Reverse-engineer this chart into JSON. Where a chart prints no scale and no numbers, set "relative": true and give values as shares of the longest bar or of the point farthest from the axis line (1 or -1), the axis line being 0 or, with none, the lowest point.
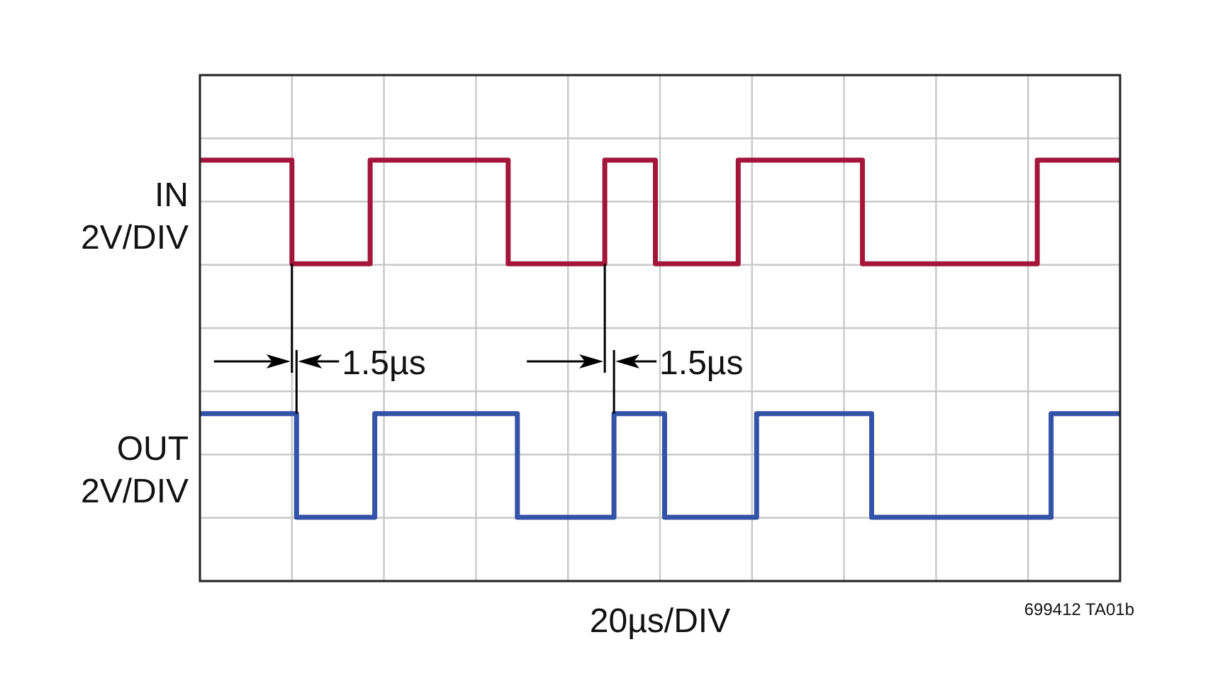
{
  "chart_data": {
    "type": "step",
    "relative": true,
    "xlabel": "20µs/DIV",
    "grid": true,
    "legend": false,
    "categories": [
      null,
      null,
      null,
      null,
      null,
      null,
      null,
      null,
      null,
      null,
      null,
      null,
      null,
      null,
      null,
      null,
      null,
      null,
      null,
      null,
      null,
      null,
      null,
      null,
      null,
      null,
      null,
      null,
      null,
      null,
      null,
      null,
      null,
      null,
      null,
      null,
      null,
      null,
      null,
      null,
      null,
      null,
      null,
      null,
      null,
      null,
      null,
      null,
      null,
      null,
      null,
      null,
      null,
      null,
      null,
      null,
      null,
      null,
      null,
      null,
      null,
      null,
      null,
      null,
      null,
      null,
      null,
      null,
      null,
      null,
      null,
      null,
      null,
      null,
      null,
      null,
      null,
      null,
      null,
      null,
      null,
      null,
      null,
      null,
      null,
      null,
      null,
      null,
      null,
      null,
      null,
      null,
      null,
      null,
      null,
      null,
      null,
      null,
      null,
      null,
      null,
      null,
      null,
      null,
      null,
      null,
      null,
      null,
      null,
      null,
      null,
      null,
      null,
      null,
      null,
      null,
      null,
      null,
      null,
      null,
      null,
      null,
      null,
      null,
      null,
      null,
      null,
      null,
      null,
      null,
      null,
      null,
      null,
      null,
      null,
      null,
      null,
      null,
      null,
      null,
      null,
      null,
      null,
      null,
      null,
      null,
      null,
      null,
      null,
      null,
      null,
      null,
      null,
      null,
      null,
      null,
      null,
      null,
      null,
      null,
      null,
      null,
      null,
      null,
      null,
      null,
      null,
      null,
      null,
      null,
      null,
      null,
      null,
      null,
      null,
      null,
      null,
      null,
      null,
      null,
      null,
      null,
      null,
      null,
      null,
      null,
      null,
      null,
      null,
      null,
      null,
      null,
      null,
      null,
      null,
      null,
      null,
      null,
      null,
      null,
      null
    ],
    "series": [
      {
        "name": "IN",
        "color": "#a3163a",
        "values": [
          1,
          1,
          1,
          1,
          1,
          1,
          1,
          1,
          1,
          1,
          1,
          1,
          1,
          1,
          1,
          1,
          1,
          1,
          1,
          1,
          0.71,
          0.71,
          0.71,
          0.71,
          0.71,
          0.71,
          0.71,
          0.71,
          0.71,
          0.71,
          0.71,
          0.71,
          0.71,
          0.71,
          0.71,
          0.71,
          0.71,
          1,
          1,
          1,
          1,
          1,
          1,
          1,
          1,
          1,
          1,
          1,
          1,
          1,
          1,
          1,
          1,
          1,
          1,
          1,
          1,
          1,
          1,
          1,
          1,
          1,
          1,
          1,
          1,
          1,
          1,
          0.71,
          0.71,
          0.71,
          0.71,
          0.71,
          0.71,
          0.71,
          0.71,
          0.71,
          0.71,
          0.71,
          0.71,
          0.71,
          0.71,
          0.71,
          0.71,
          0.71,
          0.71,
          0.71,
          0.71,
          0.71,
          1,
          1,
          1,
          1,
          1,
          1,
          1,
          1,
          1,
          1,
          1,
          0.71,
          0.71,
          0.71,
          0.71,
          0.71,
          0.71,
          0.71,
          0.71,
          0.71,
          0.71,
          0.71,
          0.71,
          0.71,
          0.71,
          0.71,
          0.71,
          0.71,
          0.71,
          1,
          1,
          1,
          1,
          1,
          1,
          1,
          1,
          1,
          1,
          1,
          1,
          1,
          1,
          1,
          1,
          1,
          1,
          1,
          1,
          1,
          1,
          1,
          1,
          1,
          1,
          1,
          0.71,
          0.71,
          0.71,
          0.71,
          0.71,
          0.71,
          0.71,
          0.71,
          0.71,
          0.71,
          0.71,
          0.71,
          0.71,
          0.71,
          0.71,
          0.71,
          0.71,
          0.71,
          0.71,
          0.71,
          0.71,
          0.71,
          0.71,
          0.71,
          0.71,
          0.71,
          0.71,
          0.71,
          0.71,
          0.71,
          0.71,
          0.71,
          0.71,
          0.71,
          0.71,
          0.71,
          0.71,
          0.71,
          1,
          1,
          1,
          1,
          1,
          1,
          1,
          1,
          1,
          1,
          1,
          1,
          1,
          1,
          1,
          1,
          1,
          1,
          1
        ]
      },
      {
        "name": "OUT",
        "color": "#3352a8",
        "values": [
          0.29,
          0.29,
          0.29,
          0.29,
          0.29,
          0.29,
          0.29,
          0.29,
          0.29,
          0.29,
          0.29,
          0.29,
          0.29,
          0.29,
          0.29,
          0.29,
          0.29,
          0.29,
          0.29,
          0.29,
          0.29,
          0,
          0,
          0,
          0,
          0,
          0,
          0,
          0,
          0,
          0,
          0,
          0,
          0,
          0,
          0,
          0,
          0,
          0.29,
          0.29,
          0.29,
          0.29,
          0.29,
          0.29,
          0.29,
          0.29,
          0.29,
          0.29,
          0.29,
          0.29,
          0.29,
          0.29,
          0.29,
          0.29,
          0.29,
          0.29,
          0.29,
          0.29,
          0.29,
          0.29,
          0.29,
          0.29,
          0.29,
          0.29,
          0.29,
          0.29,
          0.29,
          0.29,
          0.29,
          0,
          0,
          0,
          0,
          0,
          0,
          0,
          0,
          0,
          0,
          0,
          0,
          0,
          0,
          0,
          0,
          0,
          0,
          0,
          0,
          0,
          0.29,
          0.29,
          0.29,
          0.29,
          0.29,
          0.29,
          0.29,
          0.29,
          0.29,
          0.29,
          0.29,
          0,
          0,
          0,
          0,
          0,
          0,
          0,
          0,
          0,
          0,
          0,
          0,
          0,
          0,
          0,
          0,
          0,
          0,
          0,
          0,
          0.29,
          0.29,
          0.29,
          0.29,
          0.29,
          0.29,
          0.29,
          0.29,
          0.29,
          0.29,
          0.29,
          0.29,
          0.29,
          0.29,
          0.29,
          0.29,
          0.29,
          0.29,
          0.29,
          0.29,
          0.29,
          0.29,
          0.29,
          0.29,
          0.29,
          0,
          0,
          0,
          0,
          0,
          0,
          0,
          0,
          0,
          0,
          0,
          0,
          0,
          0,
          0,
          0,
          0,
          0,
          0,
          0,
          0,
          0,
          0,
          0,
          0,
          0,
          0,
          0,
          0,
          0,
          0,
          0,
          0,
          0,
          0,
          0,
          0,
          0,
          0,
          0.29,
          0.29,
          0.29,
          0.29,
          0.29,
          0.29,
          0.29,
          0.29,
          0.29,
          0.29,
          0.29,
          0.29,
          0.29,
          0.29,
          0.29,
          0.29
        ]
      }
    ],
    "annotations": [
      "2V/DIV",
      "2V/DIV",
      "1.5µs",
      "1.5µs",
      "699412 TA01b"
    ]
  }
}
